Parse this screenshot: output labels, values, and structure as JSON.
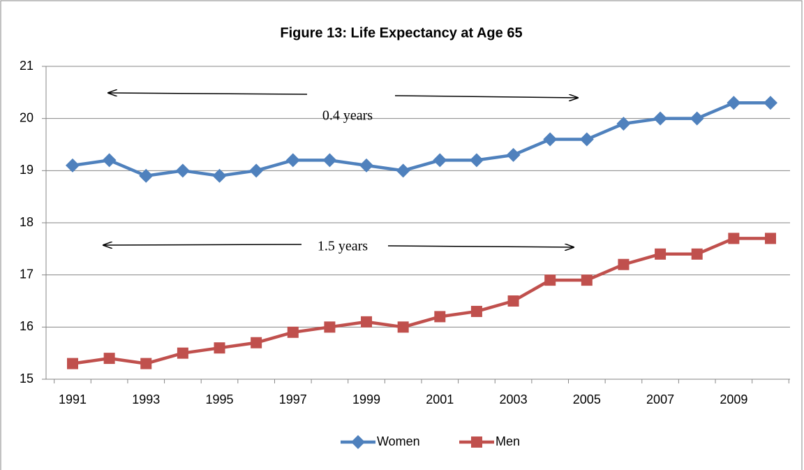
{
  "chart_data": {
    "type": "line",
    "title": "Figure 13: Life Expectancy at Age 65",
    "categories": [
      "1991",
      null,
      "1993",
      null,
      "1995",
      null,
      "1997",
      null,
      "1999",
      null,
      "2001",
      null,
      "2003",
      null,
      "2005",
      null,
      "2007",
      null,
      "2009",
      null
    ],
    "series": [
      {
        "name": "Women",
        "color": "#4f81bd",
        "marker": "diamond",
        "values": [
          19.1,
          19.2,
          18.9,
          19.0,
          18.9,
          19.0,
          19.2,
          19.2,
          19.1,
          19.0,
          19.2,
          19.2,
          19.3,
          19.6,
          19.6,
          19.9,
          20.0,
          20.0,
          20.3,
          20.3
        ]
      },
      {
        "name": "Men",
        "color": "#c0504d",
        "marker": "square",
        "values": [
          15.3,
          15.4,
          15.3,
          15.5,
          15.6,
          15.7,
          15.9,
          16.0,
          16.1,
          16.0,
          16.2,
          16.3,
          16.5,
          16.9,
          16.9,
          17.2,
          17.4,
          17.4,
          17.7,
          17.7
        ]
      }
    ],
    "ylim": [
      15,
      21
    ],
    "yticks": [
      15,
      16,
      17,
      18,
      19,
      20,
      21
    ],
    "grid": true,
    "legend": "bottom",
    "annotations": [
      "0.4 years",
      "1.5 years"
    ]
  }
}
